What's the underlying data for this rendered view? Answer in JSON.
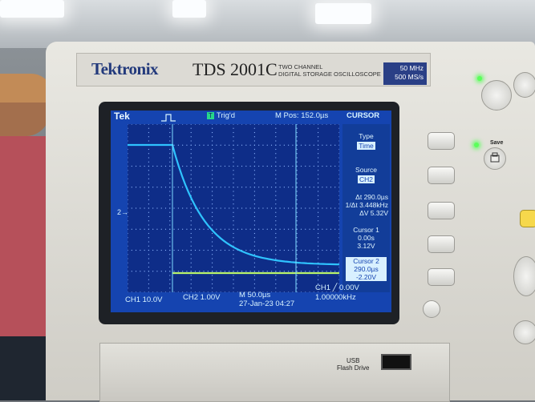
{
  "device": {
    "brand": "Tektronix",
    "model": "TDS 2001C",
    "description_line1": "TWO CHANNEL",
    "description_line2": "DIGITAL STORAGE OSCILLOSCOPE",
    "bandwidth": "50 MHz",
    "sample_rate": "500 MS/s",
    "save_label": "Save",
    "usb_label_line1": "USB",
    "usb_label_line2": "Flash Drive"
  },
  "screen": {
    "logo": "Tek",
    "trig_badge": "T",
    "trig_status": "Trig'd",
    "m_pos": "M Pos: 152.0µs",
    "menu_title": "CURSOR",
    "menu": {
      "type_label": "Type",
      "type_value": "Time",
      "source_label": "Source",
      "source_value": "CH2",
      "delta_time": "Δt 290.0µs",
      "inv_delta": "1/Δt 3.448kHz",
      "delta_v": "ΔV 5.32V",
      "cursor1_label": "Cursor 1",
      "cursor1_time": "0.00s",
      "cursor1_v": "3.12V",
      "cursor2_label": "Cursor 2",
      "cursor2_time": "290.0µs",
      "cursor2_v": "-2.20V"
    },
    "ch1_scale": "CH1  10.0V",
    "ch2_scale": "CH2  1.00V",
    "timebase": "M 50.0µs",
    "date_time": "27-Jan-23 04:27",
    "trigger": "CH1 ╱ 0.00V",
    "frequency": "1.00000kHz",
    "ch2_marker": "2→"
  },
  "colors": {
    "screen_bg": "#1544b0",
    "ch1_trace": "#2fc3ff",
    "ch2_trace": "#b9f36a",
    "grid_dot": "#8fb7ff"
  }
}
